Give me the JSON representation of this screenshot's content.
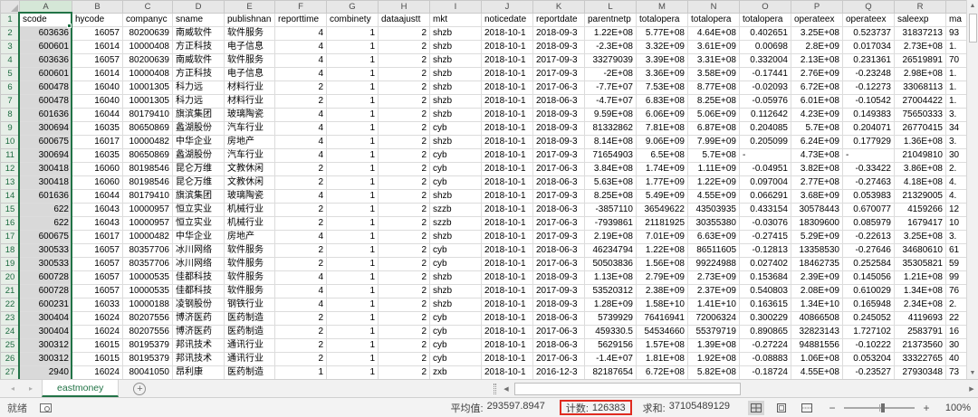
{
  "colors": {
    "accent_green": "#217346",
    "selection_fill": "#d9d9d9",
    "annotation_red": "#e02b20"
  },
  "icons": {
    "tab_prev": "◂",
    "tab_next": "▸",
    "add_sheet": "+",
    "scroll_up": "▲",
    "scroll_down": "▼",
    "scroll_left": "◀",
    "scroll_right": "▶",
    "zoom_out": "−",
    "zoom_in": "+"
  },
  "grid": {
    "column_letters": [
      "A",
      "B",
      "C",
      "D",
      "E",
      "F",
      "G",
      "H",
      "I",
      "J",
      "K",
      "L",
      "M",
      "N",
      "O",
      "P",
      "Q",
      "R",
      ""
    ],
    "field_headers": [
      "scode",
      "hycode",
      "companyc",
      "sname",
      "publishnan",
      "reporttime",
      "combinety",
      "dataajustt",
      "mkt",
      "noticedate",
      "reportdate",
      "parentnetp",
      "totalopera",
      "totalopera",
      "totalopera",
      "operateex",
      "operateex",
      "saleexp",
      "ma"
    ],
    "rows": [
      {
        "n": "2",
        "cells": [
          "603636",
          "16057",
          "80200639",
          "南威软件",
          "软件服务",
          "4",
          "1",
          "2",
          "shzb",
          "2018-10-1",
          "2018-09-3",
          "1.22E+08",
          "5.77E+08",
          "4.64E+08",
          "0.402651",
          "3.25E+08",
          "0.523737",
          "31837213",
          "93"
        ]
      },
      {
        "n": "3",
        "cells": [
          "600601",
          "16014",
          "10000408",
          "方正科技",
          "电子信息",
          "4",
          "1",
          "2",
          "shzb",
          "2018-10-1",
          "2018-09-3",
          "-2.3E+08",
          "3.32E+09",
          "3.61E+09",
          "0.00698",
          "2.8E+09",
          "0.017034",
          "2.73E+08",
          "1."
        ]
      },
      {
        "n": "4",
        "cells": [
          "603636",
          "16057",
          "80200639",
          "南威软件",
          "软件服务",
          "4",
          "1",
          "2",
          "shzb",
          "2018-10-1",
          "2017-09-3",
          "33279039",
          "3.39E+08",
          "3.31E+08",
          "0.332004",
          "2.13E+08",
          "0.231361",
          "26519891",
          "70"
        ]
      },
      {
        "n": "5",
        "cells": [
          "600601",
          "16014",
          "10000408",
          "方正科技",
          "电子信息",
          "4",
          "1",
          "2",
          "shzb",
          "2018-10-1",
          "2017-09-3",
          "-2E+08",
          "3.36E+09",
          "3.58E+09",
          "-0.17441",
          "2.76E+09",
          "-0.23248",
          "2.98E+08",
          "1."
        ]
      },
      {
        "n": "6",
        "cells": [
          "600478",
          "16040",
          "10001305",
          "科力远",
          "材料行业",
          "2",
          "1",
          "2",
          "shzb",
          "2018-10-1",
          "2017-06-3",
          "-7.7E+07",
          "7.53E+08",
          "8.77E+08",
          "-0.02093",
          "6.72E+08",
          "-0.12273",
          "33068113",
          "1."
        ]
      },
      {
        "n": "7",
        "cells": [
          "600478",
          "16040",
          "10001305",
          "科力远",
          "材料行业",
          "2",
          "1",
          "2",
          "shzb",
          "2018-10-1",
          "2018-06-3",
          "-4.7E+07",
          "6.83E+08",
          "8.25E+08",
          "-0.05976",
          "6.01E+08",
          "-0.10542",
          "27004422",
          "1."
        ]
      },
      {
        "n": "8",
        "cells": [
          "601636",
          "16044",
          "80179410",
          "旗滨集团",
          "玻璃陶瓷",
          "4",
          "1",
          "2",
          "shzb",
          "2018-10-1",
          "2018-09-3",
          "9.59E+08",
          "6.06E+09",
          "5.06E+09",
          "0.112642",
          "4.23E+09",
          "0.149383",
          "75650333",
          "3."
        ]
      },
      {
        "n": "9",
        "cells": [
          "300694",
          "16035",
          "80650869",
          "蠡湖股份",
          "汽车行业",
          "4",
          "1",
          "2",
          "cyb",
          "2018-10-1",
          "2018-09-3",
          "81332862",
          "7.81E+08",
          "6.87E+08",
          "0.204085",
          "5.7E+08",
          "0.204071",
          "26770415",
          "34"
        ]
      },
      {
        "n": "10",
        "cells": [
          "600675",
          "16017",
          "10000482",
          "中华企业",
          "房地产",
          "4",
          "1",
          "2",
          "shzb",
          "2018-10-1",
          "2018-09-3",
          "8.14E+08",
          "9.06E+09",
          "7.99E+09",
          "0.205099",
          "6.24E+09",
          "0.177929",
          "1.36E+08",
          "3."
        ]
      },
      {
        "n": "11",
        "cells": [
          "300694",
          "16035",
          "80650869",
          "蠡湖股份",
          "汽车行业",
          "4",
          "1",
          "2",
          "cyb",
          "2018-10-1",
          "2017-09-3",
          "71654903",
          "6.5E+08",
          "5.7E+08",
          "-",
          "4.73E+08",
          "-",
          "21049810",
          "30"
        ]
      },
      {
        "n": "12",
        "cells": [
          "300418",
          "16060",
          "80198546",
          "昆仑万维",
          "文教休闲",
          "2",
          "1",
          "2",
          "cyb",
          "2018-10-1",
          "2017-06-3",
          "3.84E+08",
          "1.74E+09",
          "1.11E+09",
          "-0.04951",
          "3.82E+08",
          "-0.33422",
          "3.86E+08",
          "2."
        ]
      },
      {
        "n": "13",
        "cells": [
          "300418",
          "16060",
          "80198546",
          "昆仑万维",
          "文教休闲",
          "2",
          "1",
          "2",
          "cyb",
          "2018-10-1",
          "2018-06-3",
          "5.63E+08",
          "1.77E+09",
          "1.22E+09",
          "0.097004",
          "2.77E+08",
          "-0.27463",
          "4.18E+08",
          "4."
        ]
      },
      {
        "n": "14",
        "cells": [
          "601636",
          "16044",
          "80179410",
          "旗滨集团",
          "玻璃陶瓷",
          "4",
          "1",
          "2",
          "shzb",
          "2018-10-1",
          "2017-09-3",
          "8.25E+08",
          "5.49E+09",
          "4.55E+09",
          "0.066291",
          "3.68E+09",
          "0.053983",
          "21329005",
          "4."
        ]
      },
      {
        "n": "15",
        "cells": [
          "622",
          "16043",
          "10000957",
          "恒立实业",
          "机械行业",
          "2",
          "1",
          "2",
          "szzb",
          "2018-10-1",
          "2018-06-3",
          "-3857110",
          "36549622",
          "43503935",
          "0.433154",
          "30578443",
          "0.670077",
          "4159266",
          "12"
        ]
      },
      {
        "n": "16",
        "cells": [
          "622",
          "16043",
          "10000957",
          "恒立实业",
          "机械行业",
          "2",
          "1",
          "2",
          "szzb",
          "2018-10-1",
          "2017-06-3",
          "-7939861",
          "21181925",
          "30355380",
          "-0.03076",
          "18309600",
          "0.085979",
          "1679417",
          "10"
        ]
      },
      {
        "n": "17",
        "cells": [
          "600675",
          "16017",
          "10000482",
          "中华企业",
          "房地产",
          "4",
          "1",
          "2",
          "shzb",
          "2018-10-1",
          "2017-09-3",
          "2.19E+08",
          "7.01E+09",
          "6.63E+09",
          "-0.27415",
          "5.29E+09",
          "-0.22613",
          "3.25E+08",
          "3."
        ]
      },
      {
        "n": "18",
        "cells": [
          "300533",
          "16057",
          "80357706",
          "冰川网络",
          "软件服务",
          "2",
          "1",
          "2",
          "cyb",
          "2018-10-1",
          "2018-06-3",
          "46234794",
          "1.22E+08",
          "86511605",
          "-0.12813",
          "13358530",
          "-0.27646",
          "34680610",
          "61"
        ]
      },
      {
        "n": "19",
        "cells": [
          "300533",
          "16057",
          "80357706",
          "冰川网络",
          "软件服务",
          "2",
          "1",
          "2",
          "cyb",
          "2018-10-1",
          "2017-06-3",
          "50503836",
          "1.56E+08",
          "99224988",
          "0.027402",
          "18462735",
          "0.252584",
          "35305821",
          "59"
        ]
      },
      {
        "n": "20",
        "cells": [
          "600728",
          "16057",
          "10000535",
          "佳都科技",
          "软件服务",
          "4",
          "1",
          "2",
          "shzb",
          "2018-10-1",
          "2018-09-3",
          "1.13E+08",
          "2.79E+09",
          "2.73E+09",
          "0.153684",
          "2.39E+09",
          "0.145056",
          "1.21E+08",
          "99"
        ]
      },
      {
        "n": "21",
        "cells": [
          "600728",
          "16057",
          "10000535",
          "佳都科技",
          "软件服务",
          "4",
          "1",
          "2",
          "shzb",
          "2018-10-1",
          "2017-09-3",
          "53520312",
          "2.38E+09",
          "2.37E+09",
          "0.540803",
          "2.08E+09",
          "0.610029",
          "1.34E+08",
          "76"
        ]
      },
      {
        "n": "22",
        "cells": [
          "600231",
          "16033",
          "10000188",
          "凌钢股份",
          "钢铁行业",
          "4",
          "1",
          "2",
          "shzb",
          "2018-10-1",
          "2018-09-3",
          "1.28E+09",
          "1.58E+10",
          "1.41E+10",
          "0.163615",
          "1.34E+10",
          "0.165948",
          "2.34E+08",
          "2."
        ]
      },
      {
        "n": "23",
        "cells": [
          "300404",
          "16024",
          "80207556",
          "博济医药",
          "医药制造",
          "2",
          "1",
          "2",
          "cyb",
          "2018-10-1",
          "2018-06-3",
          "5739929",
          "76416941",
          "72006324",
          "0.300229",
          "40866508",
          "0.245052",
          "4119693",
          "22"
        ]
      },
      {
        "n": "24",
        "cells": [
          "300404",
          "16024",
          "80207556",
          "博济医药",
          "医药制造",
          "2",
          "1",
          "2",
          "cyb",
          "2018-10-1",
          "2017-06-3",
          "459330.5",
          "54534660",
          "55379719",
          "0.890865",
          "32823143",
          "1.727102",
          "2583791",
          "16"
        ]
      },
      {
        "n": "25",
        "cells": [
          "300312",
          "16015",
          "80195379",
          "邦讯技术",
          "通讯行业",
          "2",
          "1",
          "2",
          "cyb",
          "2018-10-1",
          "2018-06-3",
          "5629156",
          "1.57E+08",
          "1.39E+08",
          "-0.27224",
          "94881556",
          "-0.10222",
          "21373560",
          "30"
        ]
      },
      {
        "n": "26",
        "cells": [
          "300312",
          "16015",
          "80195379",
          "邦讯技术",
          "通讯行业",
          "2",
          "1",
          "2",
          "cyb",
          "2018-10-1",
          "2017-06-3",
          "-1.4E+07",
          "1.81E+08",
          "1.92E+08",
          "-0.08883",
          "1.06E+08",
          "0.053204",
          "33322765",
          "40"
        ]
      },
      {
        "n": "27",
        "cells": [
          "2940",
          "16024",
          "80041050",
          "昂利康",
          "医药制造",
          "1",
          "1",
          "2",
          "zxb",
          "2018-10-1",
          "2016-12-3",
          "82187654",
          "6.72E+08",
          "5.82E+08",
          "-0.18724",
          "4.55E+08",
          "-0.23527",
          "27930348",
          "73"
        ]
      }
    ]
  },
  "sheet_tabs": {
    "active_tab": "eastmoney"
  },
  "status_bar": {
    "ready": "就绪",
    "average_label": "平均值:",
    "average_value": "293597.8947",
    "count_label": "计数:",
    "count_value": "126383",
    "sum_label": "求和:",
    "sum_value": "37105489129",
    "zoom_level": "100%"
  }
}
